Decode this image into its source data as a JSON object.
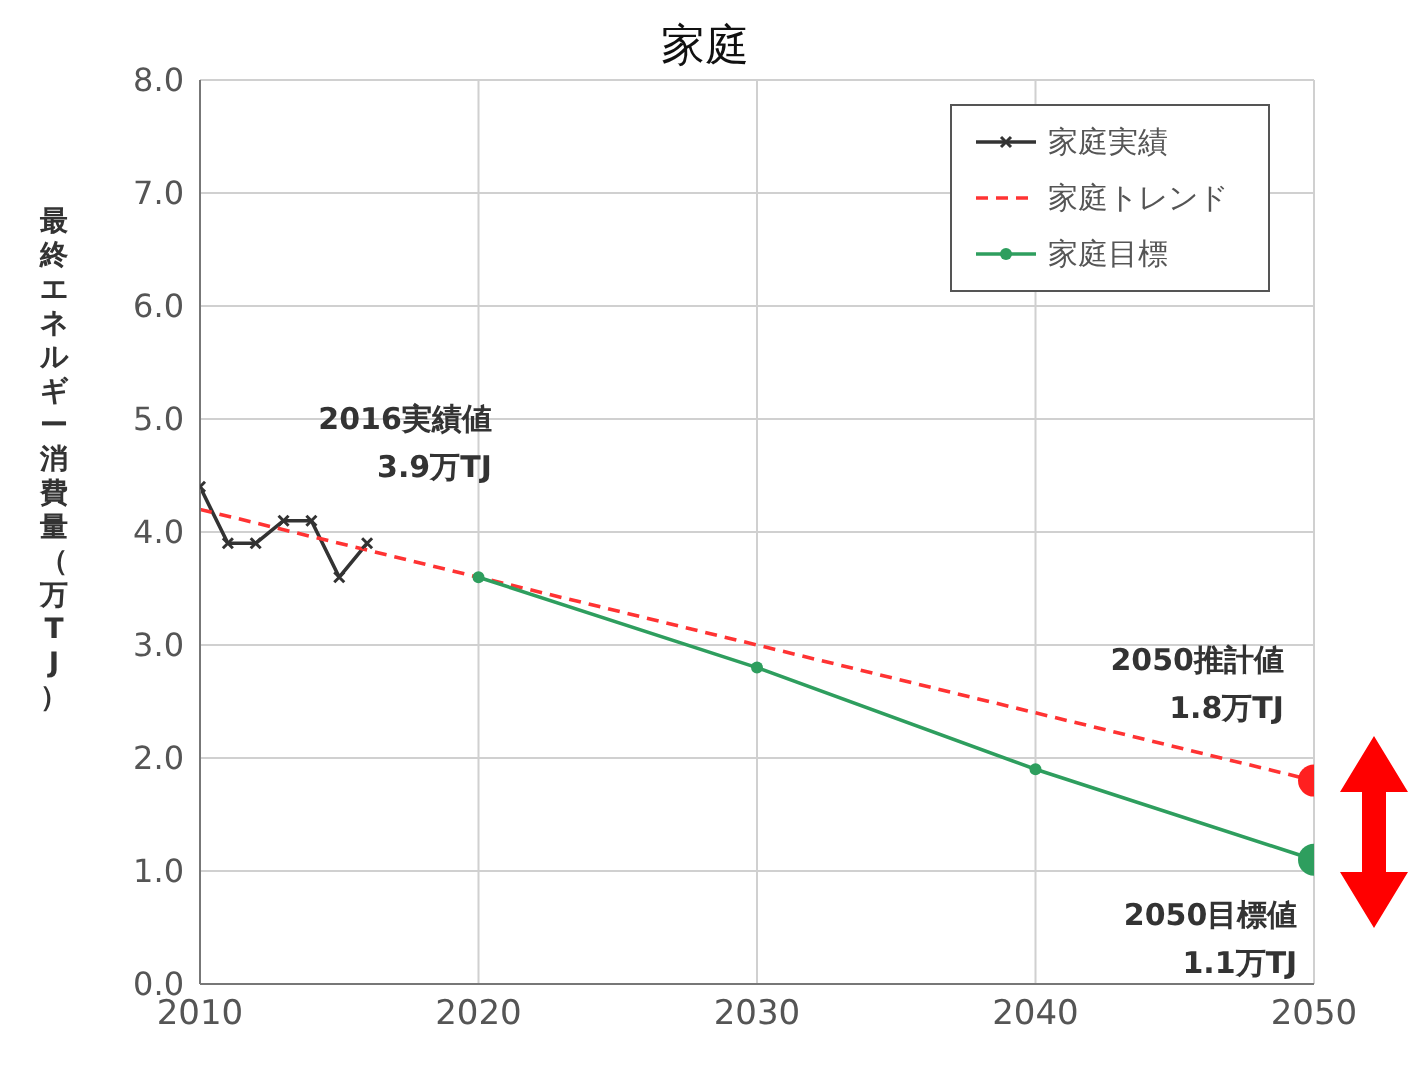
{
  "chart_data": {
    "type": "line",
    "title": "家庭",
    "ylabel": "最終エネルギー消費量（万TJ）",
    "xlim": [
      2010,
      2050
    ],
    "xticks": [
      2010,
      2020,
      2030,
      2040,
      2050
    ],
    "ylim": [
      0,
      8
    ],
    "yticks": [
      {
        "value": 0,
        "label": "0.0"
      },
      {
        "value": 1,
        "label": "1.0"
      },
      {
        "value": 2,
        "label": "2.0"
      },
      {
        "value": 3,
        "label": "3.0"
      },
      {
        "value": 4,
        "label": "4.0"
      },
      {
        "value": 5,
        "label": "5.0"
      },
      {
        "value": 6,
        "label": "6.0"
      },
      {
        "value": 7,
        "label": "7.0"
      },
      {
        "value": 8,
        "label": "8.0"
      }
    ],
    "grid": true,
    "legend": "top right",
    "series": [
      {
        "name": "家庭実績",
        "color": "#333333",
        "marker": "cross",
        "line_style": "solid",
        "x": [
          2010,
          2011,
          2012,
          2013,
          2014,
          2015,
          2016
        ],
        "values": [
          4.4,
          3.9,
          3.9,
          4.1,
          4.1,
          3.6,
          3.9
        ]
      },
      {
        "name": "家庭トレンド",
        "color": "#ff3333",
        "marker": "none",
        "line_style": "dashed",
        "x": [
          2010,
          2050
        ],
        "values": [
          4.2,
          1.8
        ]
      },
      {
        "name": "家庭目標",
        "color": "#2e9e5e",
        "marker": "circle",
        "line_style": "solid",
        "x": [
          2020,
          2030,
          2040,
          2050
        ],
        "values": [
          3.6,
          2.8,
          1.9,
          1.1
        ]
      },
      {
        "type": "scatter",
        "color": "#ff2020",
        "marker": "circle",
        "x": [
          2050
        ],
        "values": [
          1.8
        ]
      },
      {
        "type": "scatter",
        "color": "#2e9e5e",
        "marker": "circle",
        "x": [
          2050
        ],
        "values": [
          1.1
        ]
      }
    ],
    "annotations": [
      "2016実績値\n3.9万TJ",
      "2050推計値\n1.8万TJ",
      "2050目標値\n1.1万TJ"
    ]
  }
}
